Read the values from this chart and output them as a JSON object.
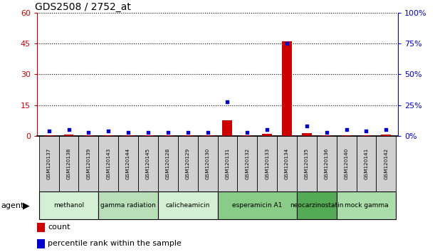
{
  "title": "GDS2508 / 2752_at",
  "samples": [
    "GSM120137",
    "GSM120138",
    "GSM120139",
    "GSM120143",
    "GSM120144",
    "GSM120145",
    "GSM120128",
    "GSM120129",
    "GSM120130",
    "GSM120131",
    "GSM120132",
    "GSM120133",
    "GSM120134",
    "GSM120135",
    "GSM120136",
    "GSM120140",
    "GSM120141",
    "GSM120142"
  ],
  "counts": [
    0.3,
    0.8,
    0.4,
    0.3,
    0.3,
    0.3,
    0.3,
    0.3,
    0.5,
    7.5,
    0.3,
    1.2,
    46.0,
    1.5,
    0.3,
    0.3,
    0.5,
    0.8
  ],
  "percentiles": [
    4,
    5,
    3,
    4,
    3,
    3,
    3,
    3,
    3,
    28,
    3,
    5,
    75,
    8,
    3,
    5,
    4,
    5
  ],
  "agents": [
    {
      "label": "methanol",
      "start": 0,
      "end": 3,
      "color": "#d4f0d4"
    },
    {
      "label": "gamma radiation",
      "start": 3,
      "end": 6,
      "color": "#b8dfb8"
    },
    {
      "label": "calicheamicin",
      "start": 6,
      "end": 9,
      "color": "#d4f0d4"
    },
    {
      "label": "esperamicin A1",
      "start": 9,
      "end": 13,
      "color": "#88cc88"
    },
    {
      "label": "neocarzinostatin",
      "start": 13,
      "end": 15,
      "color": "#55aa55"
    },
    {
      "label": "mock gamma",
      "start": 15,
      "end": 18,
      "color": "#aaddaa"
    }
  ],
  "ylim_left": [
    0,
    60
  ],
  "ylim_right": [
    0,
    100
  ],
  "yticks_left": [
    0,
    15,
    30,
    45,
    60
  ],
  "yticks_right": [
    0,
    25,
    50,
    75,
    100
  ],
  "bar_color": "#cc0000",
  "dot_color": "#0000cc",
  "left_tick_color": "#cc0000",
  "right_tick_color": "#0000cc",
  "sample_box_color": "#d0d0d0",
  "bar_width": 0.5
}
